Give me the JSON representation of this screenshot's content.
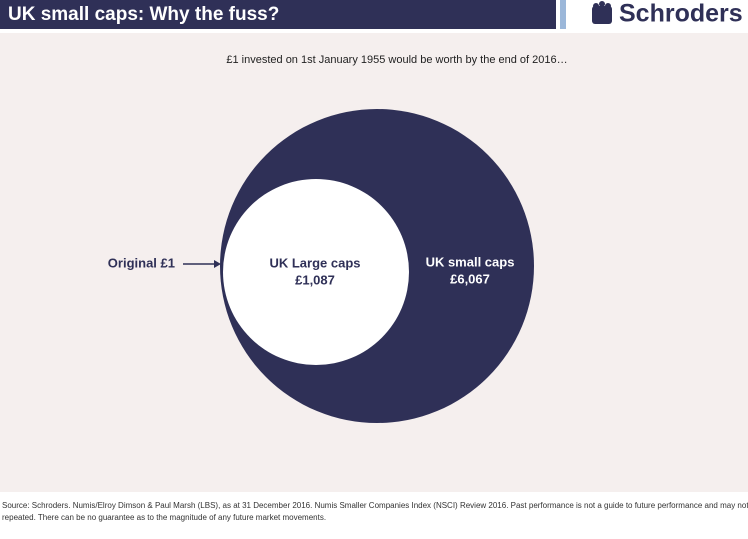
{
  "header": {
    "title": "UK small caps: Why the fuss?",
    "brand": "Schroders"
  },
  "subtitle": "£1 invested on 1st January 1955 would be worth by the end of 2016…",
  "items": [
    {
      "label": "Original £1"
    },
    {
      "label": "UK Large caps",
      "value": "£1,087"
    },
    {
      "label": "UK small caps",
      "value": "£6,067"
    }
  ],
  "source": [
    "Source: Schroders. Numis/Elroy Dimson & Paul Marsh (LBS), as at 31 December 2016. Numis Smaller Companies Index (NSCI) Review 2016. Past performance is not a guide to future performance and may not be",
    "repeated. There can be no guarantee as to the magnitude of any future market movements."
  ]
}
